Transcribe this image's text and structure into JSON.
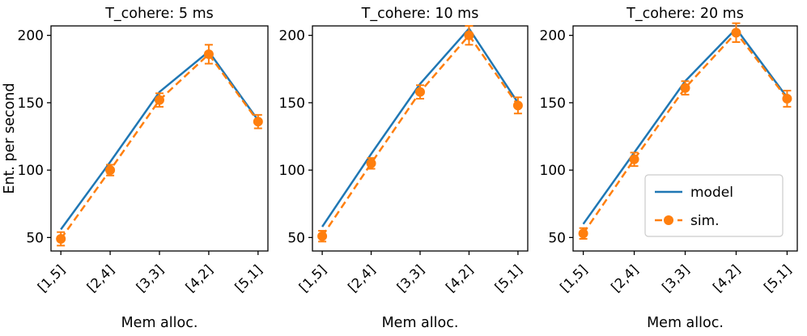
{
  "figure": {
    "colors": {
      "model": "#1f77b4",
      "sim": "#ff7f0e",
      "spine": "#000000",
      "legend_border": "#cccccc"
    }
  },
  "chart_data": [
    {
      "type": "line",
      "title": "T_cohere: 5 ms",
      "xlabel": "Mem alloc.",
      "ylabel": "Ent. per second",
      "categories": [
        "[1,5]",
        "[2,4]",
        "[3,3]",
        "[4,2]",
        "[5,1]"
      ],
      "yticks": [
        50,
        100,
        150,
        200
      ],
      "ylim": [
        40,
        207
      ],
      "grid": false,
      "series": [
        {
          "name": "model",
          "color": "#1f77b4",
          "style": "solid",
          "values": [
            56,
            106,
            158,
            188,
            137
          ]
        },
        {
          "name": "sim.",
          "color": "#ff7f0e",
          "style": "dashed",
          "marker": "circle",
          "values": [
            49,
            100,
            152,
            186,
            136
          ],
          "errors": [
            5,
            4,
            5,
            7,
            5
          ]
        }
      ]
    },
    {
      "type": "line",
      "title": "T_cohere: 10 ms",
      "xlabel": "Mem alloc.",
      "ylabel": "",
      "categories": [
        "[1,5]",
        "[2,4]",
        "[3,3]",
        "[4,2]",
        "[5,1]"
      ],
      "yticks": [
        50,
        100,
        150,
        200
      ],
      "ylim": [
        40,
        207
      ],
      "grid": false,
      "series": [
        {
          "name": "model",
          "color": "#1f77b4",
          "style": "solid",
          "values": [
            58,
            112,
            164,
            205,
            150
          ]
        },
        {
          "name": "sim.",
          "color": "#ff7f0e",
          "style": "dashed",
          "marker": "circle",
          "values": [
            51,
            105,
            158,
            200,
            148
          ],
          "errors": [
            4,
            4,
            5,
            7,
            6
          ]
        }
      ]
    },
    {
      "type": "line",
      "title": "T_cohere: 20 ms",
      "xlabel": "Mem alloc.",
      "ylabel": "",
      "categories": [
        "[1,5]",
        "[2,4]",
        "[3,3]",
        "[4,2]",
        "[5,1]"
      ],
      "yticks": [
        50,
        100,
        150,
        200
      ],
      "ylim": [
        40,
        207
      ],
      "grid": false,
      "series": [
        {
          "name": "model",
          "color": "#1f77b4",
          "style": "solid",
          "values": [
            60,
            113,
            166,
            205,
            154
          ]
        },
        {
          "name": "sim.",
          "color": "#ff7f0e",
          "style": "dashed",
          "marker": "circle",
          "values": [
            53,
            108,
            161,
            202,
            153
          ],
          "errors": [
            4,
            5,
            5,
            7,
            6
          ]
        }
      ],
      "legend": {
        "labels": [
          "model",
          "sim."
        ],
        "position": "lower right"
      }
    }
  ]
}
